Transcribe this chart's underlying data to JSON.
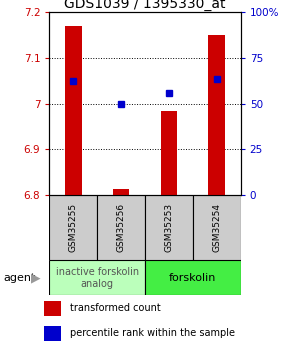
{
  "title": "GDS1039 / 1395330_at",
  "samples": [
    "GSM35255",
    "GSM35256",
    "GSM35253",
    "GSM35254"
  ],
  "bar_values": [
    7.17,
    6.812,
    6.983,
    7.15
  ],
  "percentile_values": [
    0.625,
    0.495,
    0.555,
    0.635
  ],
  "ylim_left": [
    6.8,
    7.2
  ],
  "ylim_right": [
    0.0,
    1.0
  ],
  "yticks_left": [
    6.8,
    6.9,
    7.0,
    7.1,
    7.2
  ],
  "ytick_labels_left": [
    "6.8",
    "6.9",
    "7",
    "7.1",
    "7.2"
  ],
  "yticks_right": [
    0.0,
    0.25,
    0.5,
    0.75,
    1.0
  ],
  "ytick_labels_right": [
    "0",
    "25",
    "50",
    "75",
    "100%"
  ],
  "bar_color": "#cc0000",
  "dot_color": "#0000cc",
  "bar_width": 0.35,
  "bar_bottom": 6.8,
  "group1_label": "inactive forskolin\nanalog",
  "group1_color": "#bbffbb",
  "group2_label": "forskolin",
  "group2_color": "#44ee44",
  "legend_red": "transformed count",
  "legend_blue": "percentile rank within the sample",
  "agent_label": "agent",
  "title_fontsize": 10,
  "tick_fontsize": 7.5,
  "sample_fontsize": 6.5,
  "group_fontsize": 7,
  "legend_fontsize": 7
}
